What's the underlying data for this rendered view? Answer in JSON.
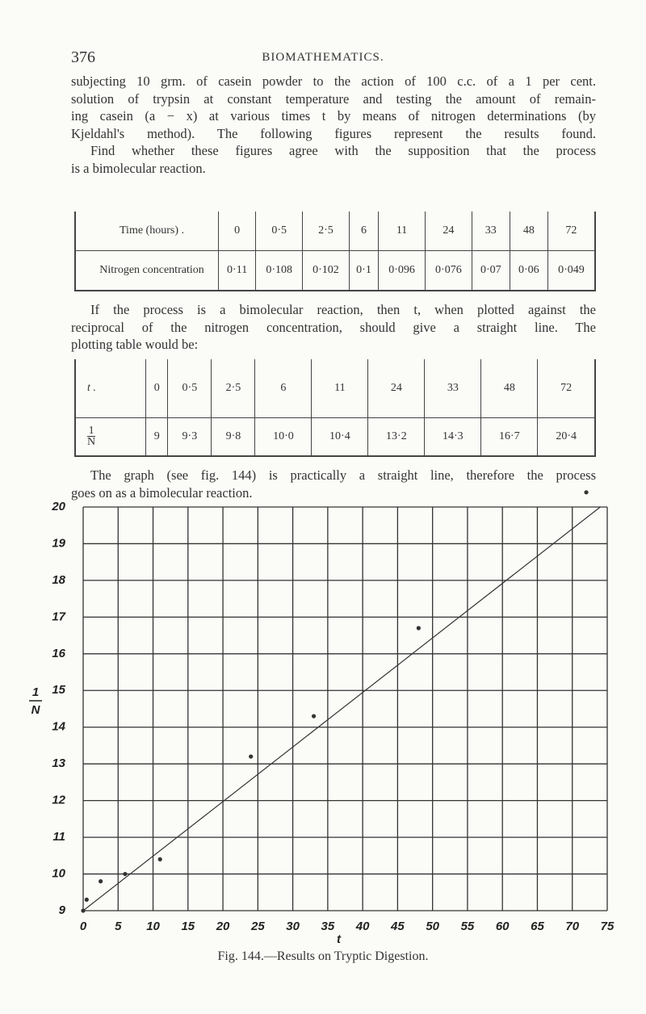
{
  "header": {
    "page_number": "376",
    "title": "BIOMATHEMATICS."
  },
  "paragraphs": [
    {
      "lines": [
        "subjecting 10 grm. of casein powder to the action of 100 c.c. of a 1 per cent.",
        "solution of trypsin at constant temperature and testing the amount of remain-",
        "ing casein (a − x) at various times t by means of nitrogen determinations (by",
        "Kjeldahl's method).  The following figures represent the results found.",
        "Find whether these figures agree with the supposition that the process",
        "is a bimolecular reaction."
      ]
    },
    {
      "lines": [
        "If the process is a bimolecular reaction, then t, when plotted against the",
        "reciprocal of the nitrogen concentration, should give a straight line.  The",
        "plotting table would be:"
      ]
    },
    {
      "lines": [
        "The graph (see fig. 144) is practically a straight line, therefore the process",
        "goes on as a bimolecular reaction."
      ]
    }
  ],
  "table1": {
    "rows": [
      [
        "Time (hours)  .",
        "0",
        "0·5",
        "2·5",
        "6",
        "11",
        "24",
        "33",
        "48",
        "72"
      ],
      [
        "Nitrogen concentration",
        "0·11",
        "0·108",
        "0·102",
        "0·1",
        "0·096",
        "0·076",
        "0·07",
        "0·06",
        "0·049"
      ]
    ]
  },
  "table2": {
    "rows": [
      [
        "t  .",
        "0",
        "0·5",
        "2·5",
        "6",
        "11",
        "24",
        "33",
        "48",
        "72"
      ],
      [
        {
          "numerator": "1",
          "denominator": "N"
        },
        "9",
        "9·3",
        "9·8",
        "10·0",
        "10·4",
        "13·2",
        "14·3",
        "16·7",
        "20·4"
      ]
    ]
  },
  "chart_data": {
    "type": "scatter",
    "x_label": "t",
    "y_label": {
      "numerator": "1",
      "denominator": "N"
    },
    "xlim": [
      0,
      75
    ],
    "xticks": [
      0,
      5,
      10,
      15,
      20,
      25,
      30,
      35,
      40,
      45,
      50,
      55,
      60,
      65,
      70,
      75
    ],
    "ylim": [
      9,
      20
    ],
    "yticks": [
      9,
      10,
      11,
      12,
      13,
      14,
      15,
      16,
      17,
      18,
      19,
      20
    ],
    "grid": true,
    "series": [
      {
        "type": "scatter",
        "color": "#333333",
        "x": [
          0,
          0.5,
          2.5,
          6,
          11,
          24,
          33,
          48,
          72
        ],
        "values": [
          9,
          9.3,
          9.8,
          10,
          10.4,
          13.2,
          14.3,
          16.7,
          20.4
        ]
      },
      {
        "type": "line",
        "color": "#333333",
        "x": [
          0,
          74
        ],
        "values": [
          9,
          20
        ]
      }
    ]
  },
  "figure_caption": "Fig. 144.—Results on Tryptic Digestion."
}
